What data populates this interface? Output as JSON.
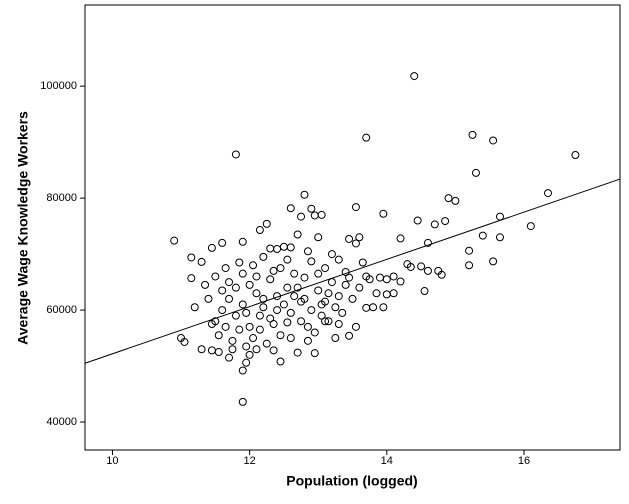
{
  "chart_data": {
    "type": "scatter",
    "xlabel": "Population (logged)",
    "ylabel": "Average Wage Knowledge Workers",
    "xlim": [
      9.6,
      17.4
    ],
    "ylim": [
      35000,
      114500
    ],
    "xticks": [
      10,
      12,
      14,
      16
    ],
    "yticks": [
      40000,
      60000,
      80000,
      100000
    ],
    "marker_color": "#000000",
    "fit_color": "#000000",
    "x": [
      14.4,
      13.7,
      11.8,
      15.25,
      15.55,
      16.75,
      16.35,
      15.3,
      11.9,
      10.9,
      11.9,
      11.6,
      15.0,
      14.9,
      16.1,
      15.65,
      15.4,
      15.65,
      15.55,
      15.2,
      15.2,
      14.75,
      14.8,
      13.55,
      13.95,
      12.8,
      12.9,
      12.6,
      12.95,
      13.05,
      12.75,
      12.25,
      12.15,
      11.45,
      11.15,
      11.3,
      11.15,
      11.05,
      11.0,
      11.3,
      11.2,
      11.45,
      11.9,
      11.95,
      12.7,
      12.95,
      13.45,
      13.1,
      14.45,
      14.7,
      14.85,
      14.6,
      14.2,
      14.1,
      14.3,
      14.5,
      14.55,
      14.0,
      13.95,
      13.7,
      14.2,
      14.35,
      14.6,
      13.6,
      13.55,
      13.45,
      13.3,
      12.4,
      12.3,
      12.5,
      12.6,
      12.85,
      12.9,
      13.1,
      13.4,
      13.7,
      13.9,
      11.5,
      11.6,
      11.7,
      11.8,
      11.9,
      12.0,
      12.1,
      12.2,
      12.3,
      12.4,
      12.5,
      12.6,
      12.7,
      12.8,
      12.9,
      13.0,
      13.1,
      13.2,
      13.3,
      13.4,
      11.55,
      11.65,
      11.75,
      11.85,
      11.95,
      12.05,
      12.15,
      12.25,
      12.35,
      12.45,
      11.6,
      11.7,
      11.8,
      11.9,
      12.0,
      12.1,
      12.2,
      12.3,
      12.45,
      12.55,
      12.65,
      12.75,
      12.85,
      12.95,
      13.05,
      13.15,
      13.25,
      13.35,
      13.5,
      13.6,
      13.75,
      13.85,
      14.0,
      14.1,
      13.65,
      13.2,
      13.0,
      12.7,
      12.55,
      12.2,
      11.4,
      11.35,
      11.45,
      11.55,
      11.7,
      12.0,
      12.1,
      12.35,
      12.6,
      12.85,
      13.3,
      13.55,
      13.8,
      11.5,
      11.65,
      11.85,
      12.05,
      12.35,
      12.65,
      12.8,
      13.0,
      13.15,
      13.45,
      11.95,
      12.15,
      12.4,
      12.55,
      12.75,
      13.05,
      13.25,
      12.45,
      11.75
    ],
    "values": [
      101800,
      90800,
      87800,
      91300,
      90300,
      87700,
      80900,
      84500,
      43600,
      72400,
      72200,
      72000,
      79500,
      80000,
      75000,
      76700,
      73300,
      73000,
      68700,
      68000,
      70600,
      67000,
      66300,
      78400,
      77200,
      80600,
      78100,
      78200,
      76900,
      77000,
      76700,
      75400,
      74300,
      71100,
      69400,
      68600,
      65700,
      54300,
      55000,
      53000,
      60500,
      52800,
      49200,
      50600,
      52400,
      52300,
      55400,
      58000,
      76000,
      75300,
      75900,
      72000,
      72800,
      63000,
      68200,
      67800,
      63400,
      62800,
      60500,
      60400,
      65100,
      67700,
      67000,
      73000,
      71900,
      72700,
      69000,
      70900,
      71000,
      71300,
      71200,
      70500,
      68700,
      67500,
      66800,
      66000,
      65800,
      58000,
      60000,
      62000,
      59000,
      61000,
      57000,
      63000,
      60500,
      58500,
      62500,
      61000,
      59500,
      64000,
      62000,
      60000,
      63500,
      61500,
      65000,
      62500,
      64500,
      55500,
      57000,
      54500,
      56500,
      53500,
      55000,
      56500,
      54000,
      57500,
      55500,
      63500,
      65000,
      64000,
      66500,
      64500,
      66000,
      62000,
      65500,
      67500,
      64000,
      66500,
      58000,
      57000,
      56000,
      59000,
      58000,
      60500,
      59500,
      62000,
      64000,
      65500,
      63000,
      65500,
      66000,
      68500,
      70000,
      73000,
      73500,
      69000,
      69500,
      62000,
      64500,
      57500,
      52500,
      51500,
      52000,
      53000,
      52800,
      55000,
      54500,
      57500,
      57000,
      60500,
      66000,
      67500,
      68500,
      68000,
      67000,
      62500,
      65800,
      66500,
      63000,
      65800,
      59500,
      59000,
      60000,
      57800,
      61500,
      61000,
      55000,
      50800,
      53000
    ],
    "fit": {
      "x": [
        9.6,
        17.4
      ],
      "y": [
        50500,
        83400
      ]
    }
  }
}
